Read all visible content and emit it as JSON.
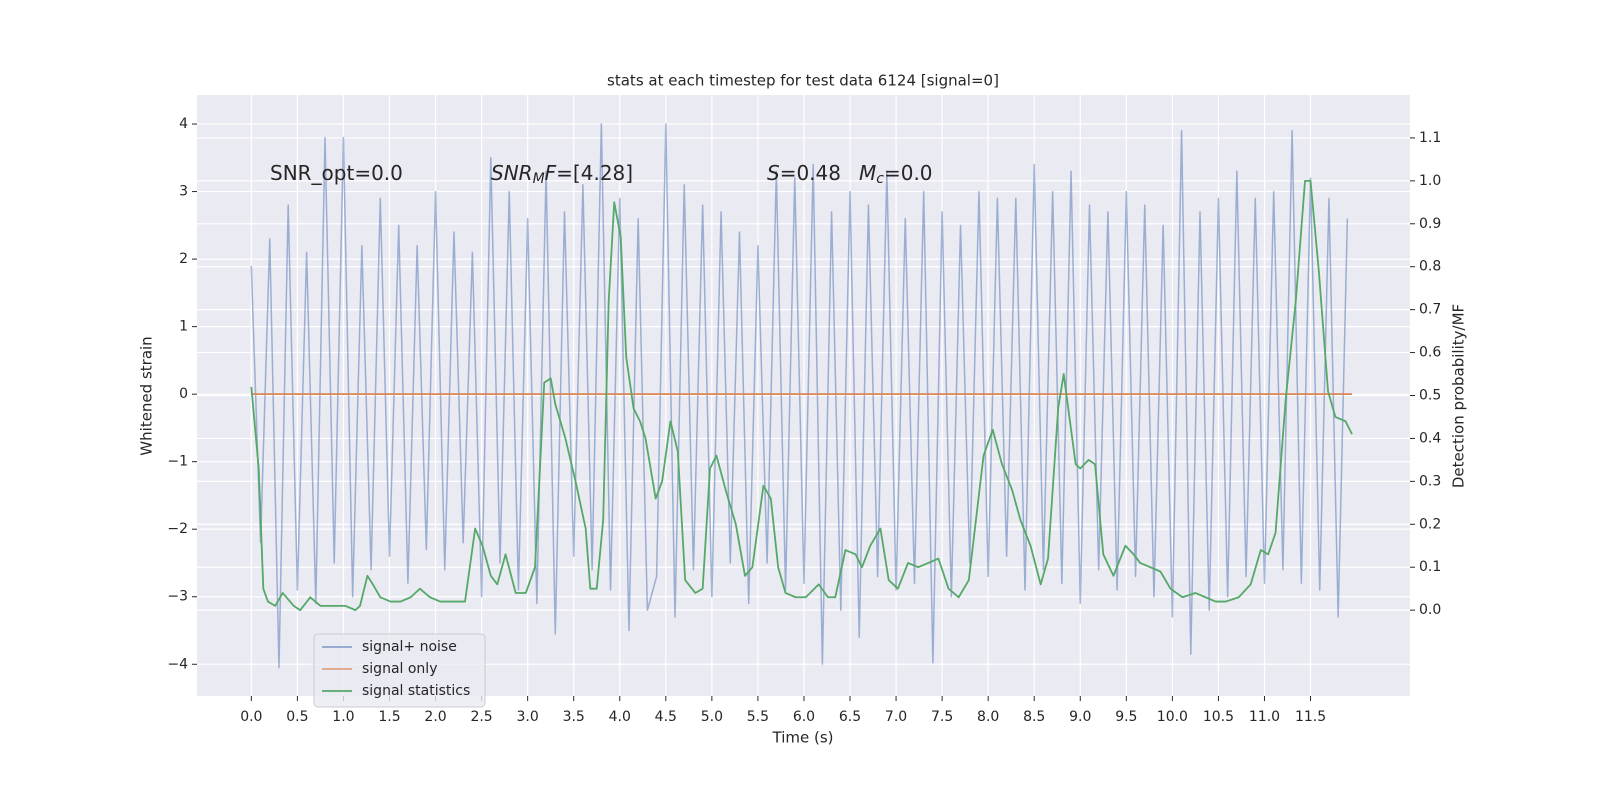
{
  "chart_data": {
    "type": "line",
    "title": "stats at each timestep for test data 6124 [signal=0]",
    "xlabel": "Time (s)",
    "ylabel": "Whitened strain",
    "y2label": "Detection probability/MF",
    "grid": true,
    "legend": "lower left",
    "xlim": [
      -0.59,
      12.58
    ],
    "ylim": [
      -4.47,
      4.43
    ],
    "y2lim": [
      -0.2,
      1.2
    ],
    "xticks": [
      {
        "value": 0,
        "label": "0.0"
      },
      {
        "value": 0.5,
        "label": "0.5"
      },
      {
        "value": 1,
        "label": "1.0"
      },
      {
        "value": 1.5,
        "label": "1.5"
      },
      {
        "value": 2,
        "label": "2.0"
      },
      {
        "value": 2.5,
        "label": "2.5"
      },
      {
        "value": 3,
        "label": "3.0"
      },
      {
        "value": 3.5,
        "label": "3.5"
      },
      {
        "value": 4,
        "label": "4.0"
      },
      {
        "value": 4.5,
        "label": "4.5"
      },
      {
        "value": 5,
        "label": "5.0"
      },
      {
        "value": 5.5,
        "label": "5.5"
      },
      {
        "value": 6,
        "label": "6.0"
      },
      {
        "value": 6.5,
        "label": "6.5"
      },
      {
        "value": 7,
        "label": "7.0"
      },
      {
        "value": 7.5,
        "label": "7.5"
      },
      {
        "value": 8,
        "label": "8.0"
      },
      {
        "value": 8.5,
        "label": "8.5"
      },
      {
        "value": 9,
        "label": "9.0"
      },
      {
        "value": 9.5,
        "label": "9.5"
      },
      {
        "value": 10,
        "label": "10.0"
      },
      {
        "value": 10.5,
        "label": "10.5"
      },
      {
        "value": 11,
        "label": "11.0"
      },
      {
        "value": 11.5,
        "label": "11.5"
      }
    ],
    "yticks": [
      {
        "value": -4,
        "label": "−4"
      },
      {
        "value": -3,
        "label": "−3"
      },
      {
        "value": -2,
        "label": "−2"
      },
      {
        "value": -1,
        "label": "−1"
      },
      0,
      1,
      2,
      3,
      4
    ],
    "y2ticks": [
      {
        "value": 0,
        "label": "0.0"
      },
      {
        "value": 0.1,
        "label": "0.1"
      },
      {
        "value": 0.2,
        "label": "0.2"
      },
      {
        "value": 0.3,
        "label": "0.3"
      },
      {
        "value": 0.4,
        "label": "0.4"
      },
      {
        "value": 0.5,
        "label": "0.5"
      },
      {
        "value": 0.6,
        "label": "0.6"
      },
      {
        "value": 0.7,
        "label": "0.7"
      },
      {
        "value": 0.8,
        "label": "0.8"
      },
      {
        "value": 0.9,
        "label": "0.9"
      },
      {
        "value": 1,
        "label": "1.0"
      },
      {
        "value": 1.1,
        "label": "1.1"
      }
    ],
    "annotations": [
      {
        "parts": [
          {
            "text": "SNR_opt=0.0"
          }
        ]
      },
      {
        "parts": [
          {
            "text": "SNR",
            "italic": true
          },
          {
            "text": "M",
            "italic": true,
            "sub": true
          },
          {
            "text": "F",
            "italic": true
          },
          {
            "text": "=[4.28]"
          }
        ]
      },
      {
        "parts": [
          {
            "text": "S",
            "italic": true
          },
          {
            "text": "=0.48"
          }
        ]
      },
      {
        "parts": [
          {
            "text": "M",
            "italic": true
          },
          {
            "text": "c",
            "italic": true,
            "sub": true
          },
          {
            "text": "=0.0"
          }
        ]
      }
    ],
    "series": [
      {
        "name": "signal+ noise",
        "color": "#4c72b0",
        "axis": "y",
        "x": [
          0,
          0.1,
          0.2,
          0.3,
          0.4,
          0.5,
          0.6,
          0.7,
          0.8,
          0.9,
          1,
          1.1,
          1.2,
          1.3,
          1.4,
          1.5,
          1.6,
          1.7,
          1.8,
          1.9,
          2,
          2.1,
          2.2,
          2.3,
          2.4,
          2.5,
          2.6,
          2.7,
          2.8,
          2.9,
          3,
          3.1,
          3.2,
          3.3,
          3.4,
          3.5,
          3.6,
          3.7,
          3.8,
          3.9,
          4,
          4.1,
          4.2,
          4.3,
          4.4,
          4.5,
          4.6,
          4.7,
          4.8,
          4.9,
          5,
          5.1,
          5.2,
          5.3,
          5.4,
          5.5,
          5.6,
          5.7,
          5.8,
          5.9,
          6,
          6.1,
          6.2,
          6.3,
          6.4,
          6.5,
          6.6,
          6.7,
          6.8,
          6.9,
          7,
          7.1,
          7.2,
          7.3,
          7.4,
          7.5,
          7.6,
          7.7,
          7.8,
          7.9,
          8,
          8.1,
          8.2,
          8.3,
          8.4,
          8.5,
          8.6,
          8.7,
          8.8,
          8.9,
          9,
          9.1,
          9.2,
          9.3,
          9.4,
          9.5,
          9.6,
          9.7,
          9.8,
          9.9,
          10,
          10.1,
          10.2,
          10.3,
          10.4,
          10.5,
          10.6,
          10.7,
          10.8,
          10.9,
          11,
          11.1,
          11.2,
          11.3,
          11.4,
          11.5,
          11.6,
          11.7,
          11.8,
          11.9
        ],
        "values": [
          1.9,
          -2.2,
          2.3,
          -4.05,
          2.8,
          -2.9,
          2.1,
          -3.1,
          3.8,
          -2.5,
          3.8,
          -3.0,
          2.2,
          -2.6,
          2.9,
          -2.4,
          2.5,
          -2.8,
          2.2,
          -2.3,
          3.0,
          -2.6,
          2.4,
          -2.2,
          2.1,
          -3.0,
          3.5,
          -2.5,
          3.0,
          -2.9,
          2.6,
          -3.1,
          3.3,
          -3.55,
          2.7,
          -2.4,
          3.1,
          -2.6,
          4.0,
          -2.9,
          2.9,
          -3.5,
          2.6,
          -3.2,
          -2.7,
          4.0,
          -3.3,
          3.1,
          -2.6,
          2.8,
          -3.0,
          2.7,
          -2.5,
          2.4,
          -3.1,
          2.2,
          -2.5,
          3.3,
          -2.9,
          3.2,
          -2.8,
          3.4,
          -4.0,
          2.7,
          -3.2,
          3.0,
          -3.6,
          2.8,
          -2.7,
          3.3,
          -2.9,
          2.6,
          -2.8,
          3.0,
          -3.98,
          2.7,
          -3.0,
          2.5,
          -2.5,
          3.0,
          -2.7,
          2.9,
          -2.4,
          2.9,
          -2.9,
          3.4,
          -2.6,
          3.0,
          -2.8,
          3.3,
          -3.1,
          2.8,
          -2.6,
          2.7,
          -2.9,
          3.0,
          -2.7,
          2.8,
          -3.0,
          2.5,
          -3.3,
          3.9,
          -3.85,
          2.7,
          -3.2,
          2.9,
          -3.0,
          3.3,
          -2.7,
          2.9,
          -2.8,
          3.0,
          -2.6,
          3.9,
          -2.8,
          3.2,
          -2.9,
          2.9,
          -3.3,
          2.6
        ]
      },
      {
        "name": "signal only",
        "color": "#dd8452",
        "axis": "y",
        "x": [
          0,
          11.95
        ],
        "values": [
          0,
          0
        ]
      },
      {
        "name": "signal statistics",
        "color": "#55a868",
        "axis": "y2",
        "x": [
          0.0,
          0.08,
          0.13,
          0.18,
          0.26,
          0.34,
          0.46,
          0.53,
          0.64,
          0.75,
          0.91,
          1.02,
          1.13,
          1.18,
          1.26,
          1.32,
          1.4,
          1.51,
          1.62,
          1.73,
          1.83,
          1.94,
          2.05,
          2.21,
          2.32,
          2.43,
          2.51,
          2.6,
          2.67,
          2.76,
          2.87,
          2.98,
          3.08,
          3.18,
          3.25,
          3.3,
          3.41,
          3.52,
          3.63,
          3.68,
          3.75,
          3.82,
          3.88,
          3.94,
          4.01,
          4.07,
          4.15,
          4.22,
          4.28,
          4.39,
          4.46,
          4.55,
          4.63,
          4.71,
          4.82,
          4.9,
          4.98,
          5.05,
          5.15,
          5.26,
          5.36,
          5.44,
          5.56,
          5.64,
          5.72,
          5.8,
          5.91,
          6.02,
          6.16,
          6.26,
          6.34,
          6.45,
          6.56,
          6.63,
          6.72,
          6.83,
          6.92,
          7.02,
          7.13,
          7.24,
          7.35,
          7.46,
          7.57,
          7.68,
          7.79,
          7.95,
          8.05,
          8.15,
          8.26,
          8.35,
          8.46,
          8.57,
          8.65,
          8.76,
          8.82,
          8.95,
          9.0,
          9.09,
          9.16,
          9.25,
          9.36,
          9.49,
          9.58,
          9.65,
          9.76,
          9.87,
          9.98,
          10.11,
          10.25,
          10.36,
          10.47,
          10.58,
          10.72,
          10.85,
          10.96,
          11.04,
          11.12,
          11.23,
          11.34,
          11.44,
          11.5,
          11.59,
          11.69,
          11.77,
          11.88,
          11.95
        ],
        "values": [
          0.52,
          0.33,
          0.05,
          0.02,
          0.01,
          0.04,
          0.01,
          0.0,
          0.03,
          0.01,
          0.01,
          0.01,
          0.0,
          0.01,
          0.08,
          0.06,
          0.03,
          0.02,
          0.02,
          0.03,
          0.05,
          0.03,
          0.02,
          0.02,
          0.02,
          0.19,
          0.15,
          0.08,
          0.06,
          0.13,
          0.04,
          0.04,
          0.1,
          0.53,
          0.54,
          0.48,
          0.4,
          0.3,
          0.19,
          0.05,
          0.05,
          0.21,
          0.72,
          0.95,
          0.87,
          0.59,
          0.47,
          0.44,
          0.4,
          0.26,
          0.3,
          0.44,
          0.37,
          0.07,
          0.04,
          0.05,
          0.33,
          0.36,
          0.28,
          0.2,
          0.08,
          0.1,
          0.29,
          0.26,
          0.1,
          0.04,
          0.03,
          0.03,
          0.06,
          0.03,
          0.03,
          0.14,
          0.13,
          0.1,
          0.15,
          0.19,
          0.07,
          0.05,
          0.11,
          0.1,
          0.11,
          0.12,
          0.05,
          0.03,
          0.07,
          0.36,
          0.42,
          0.34,
          0.28,
          0.21,
          0.15,
          0.06,
          0.12,
          0.47,
          0.55,
          0.34,
          0.33,
          0.35,
          0.34,
          0.13,
          0.08,
          0.15,
          0.13,
          0.11,
          0.1,
          0.09,
          0.05,
          0.03,
          0.04,
          0.03,
          0.02,
          0.02,
          0.03,
          0.06,
          0.14,
          0.13,
          0.18,
          0.49,
          0.72,
          1.0,
          1.0,
          0.79,
          0.51,
          0.45,
          0.44,
          0.41
        ]
      }
    ]
  }
}
